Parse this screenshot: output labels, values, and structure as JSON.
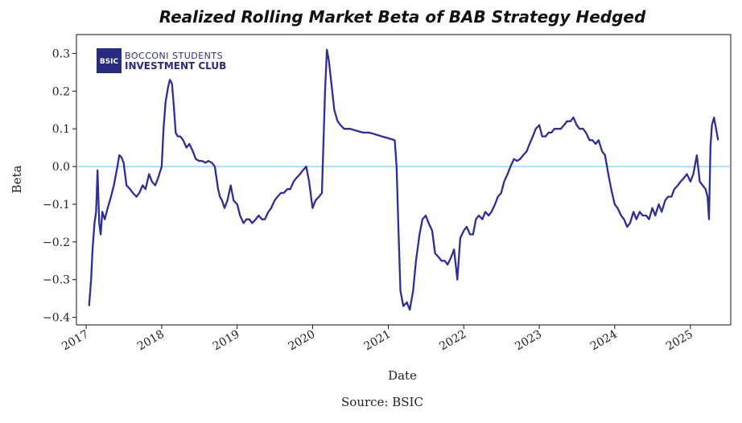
{
  "colors": {
    "line": "#2e2e96",
    "zero_line": "#8ec8f0",
    "logo_bg": "#2a2a80"
  },
  "logo": {
    "icon": "bsic-logo-icon",
    "mark": "BSIC",
    "line1": "BOCCONI STUDENTS",
    "line2": "INVESTMENT CLUB"
  },
  "chart_data": {
    "type": "line",
    "title": "Realized Rolling Market Beta of BAB Strategy Hedged",
    "xlabel": "Date",
    "ylabel": "Beta",
    "source": "Source: BSIC",
    "xlim": [
      "2016-11-15",
      "2025-07-15"
    ],
    "ylim": [
      -0.42,
      0.35
    ],
    "x_ticks": [
      "2017",
      "2018",
      "2019",
      "2020",
      "2021",
      "2022",
      "2023",
      "2024",
      "2025"
    ],
    "y_ticks": [
      -0.4,
      -0.3,
      -0.2,
      -0.1,
      0.0,
      0.1,
      0.2,
      0.3
    ],
    "y_tick_labels": [
      "−0.4",
      "−0.3",
      "−0.2",
      "−0.1",
      "0.0",
      "0.1",
      "0.2",
      "0.3"
    ],
    "hline": 0.0,
    "grid": false,
    "series": [
      {
        "x": [
          "2017-01-15",
          "2017-01-25",
          "2017-02-01",
          "2017-02-10",
          "2017-02-18",
          "2017-02-25",
          "2017-03-05",
          "2017-03-12",
          "2017-03-20",
          "2017-04-01",
          "2017-04-15",
          "2017-05-01",
          "2017-05-15",
          "2017-06-01",
          "2017-06-10",
          "2017-06-20",
          "2017-07-01",
          "2017-07-15",
          "2017-08-01",
          "2017-08-15",
          "2017-09-01",
          "2017-09-15",
          "2017-10-01",
          "2017-10-15",
          "2017-11-01",
          "2017-11-15",
          "2017-12-01",
          "2017-12-15",
          "2018-01-01",
          "2018-01-10",
          "2018-01-20",
          "2018-02-01",
          "2018-02-10",
          "2018-02-20",
          "2018-03-01",
          "2018-03-10",
          "2018-03-20",
          "2018-04-01",
          "2018-04-15",
          "2018-05-01",
          "2018-05-15",
          "2018-06-01",
          "2018-06-15",
          "2018-07-01",
          "2018-07-15",
          "2018-08-01",
          "2018-08-15",
          "2018-09-01",
          "2018-09-15",
          "2018-10-01",
          "2018-10-10",
          "2018-10-20",
          "2018-11-01",
          "2018-11-15",
          "2018-12-01",
          "2018-12-15",
          "2019-01-01",
          "2019-01-15",
          "2019-02-01",
          "2019-02-15",
          "2019-03-01",
          "2019-03-15",
          "2019-04-01",
          "2019-04-15",
          "2019-05-01",
          "2019-05-15",
          "2019-06-01",
          "2019-06-15",
          "2019-07-01",
          "2019-07-15",
          "2019-08-01",
          "2019-08-15",
          "2019-09-01",
          "2019-09-15",
          "2019-10-01",
          "2019-10-15",
          "2019-11-01",
          "2019-11-15",
          "2019-12-01",
          "2019-12-15",
          "2020-01-01",
          "2020-01-15",
          "2020-02-01",
          "2020-02-15",
          "2020-03-01",
          "2020-03-10",
          "2020-03-20",
          "2020-04-01",
          "2020-04-15",
          "2020-05-01",
          "2020-05-15",
          "2020-06-01",
          "2020-07-01",
          "2020-08-01",
          "2020-09-01",
          "2020-10-01",
          "2020-11-01",
          "2020-12-01",
          "2021-01-01",
          "2021-02-01",
          "2021-02-10",
          "2021-02-20",
          "2021-03-01",
          "2021-03-15",
          "2021-04-01",
          "2021-04-15",
          "2021-05-01",
          "2021-05-15",
          "2021-06-01",
          "2021-06-15",
          "2021-07-01",
          "2021-07-15",
          "2021-08-01",
          "2021-08-15",
          "2021-09-01",
          "2021-09-15",
          "2021-10-01",
          "2021-10-15",
          "2021-11-01",
          "2021-11-15",
          "2021-12-01",
          "2021-12-15",
          "2022-01-01",
          "2022-01-15",
          "2022-02-01",
          "2022-02-15",
          "2022-03-01",
          "2022-03-15",
          "2022-04-01",
          "2022-04-15",
          "2022-05-01",
          "2022-05-15",
          "2022-06-01",
          "2022-06-15",
          "2022-07-01",
          "2022-07-15",
          "2022-08-01",
          "2022-08-15",
          "2022-09-01",
          "2022-09-15",
          "2022-10-01",
          "2022-10-15",
          "2022-11-01",
          "2022-11-15",
          "2022-12-01",
          "2022-12-15",
          "2023-01-01",
          "2023-01-15",
          "2023-02-01",
          "2023-02-15",
          "2023-03-01",
          "2023-03-15",
          "2023-04-01",
          "2023-04-15",
          "2023-05-01",
          "2023-05-15",
          "2023-06-01",
          "2023-06-15",
          "2023-07-01",
          "2023-07-15",
          "2023-08-01",
          "2023-08-15",
          "2023-09-01",
          "2023-09-15",
          "2023-10-01",
          "2023-10-15",
          "2023-11-01",
          "2023-11-15",
          "2023-12-01",
          "2023-12-15",
          "2024-01-01",
          "2024-01-15",
          "2024-02-01",
          "2024-02-15",
          "2024-03-01",
          "2024-03-15",
          "2024-04-01",
          "2024-04-15",
          "2024-05-01",
          "2024-05-15",
          "2024-06-01",
          "2024-06-15",
          "2024-07-01",
          "2024-07-15",
          "2024-08-01",
          "2024-08-15",
          "2024-09-01",
          "2024-09-15",
          "2024-10-01",
          "2024-10-15",
          "2024-11-01",
          "2024-11-15",
          "2024-12-01",
          "2024-12-15",
          "2025-01-01",
          "2025-01-15",
          "2025-02-01",
          "2025-02-15",
          "2025-03-01",
          "2025-03-15",
          "2025-03-25",
          "2025-04-01",
          "2025-04-08",
          "2025-04-15",
          "2025-04-25",
          "2025-05-05",
          "2025-05-15"
        ],
        "values": [
          -0.37,
          -0.3,
          -0.22,
          -0.15,
          -0.12,
          -0.01,
          -0.15,
          -0.18,
          -0.12,
          -0.14,
          -0.11,
          -0.08,
          -0.05,
          0.0,
          0.03,
          0.025,
          0.01,
          -0.05,
          -0.06,
          -0.07,
          -0.08,
          -0.07,
          -0.05,
          -0.06,
          -0.02,
          -0.04,
          -0.05,
          -0.03,
          0.0,
          0.1,
          0.17,
          0.21,
          0.23,
          0.22,
          0.16,
          0.09,
          0.08,
          0.08,
          0.07,
          0.05,
          0.06,
          0.04,
          0.02,
          0.015,
          0.015,
          0.01,
          0.015,
          0.01,
          0.0,
          -0.06,
          -0.08,
          -0.09,
          -0.11,
          -0.09,
          -0.05,
          -0.09,
          -0.1,
          -0.13,
          -0.15,
          -0.14,
          -0.14,
          -0.15,
          -0.14,
          -0.13,
          -0.14,
          -0.14,
          -0.12,
          -0.11,
          -0.09,
          -0.08,
          -0.07,
          -0.07,
          -0.06,
          -0.06,
          -0.04,
          -0.03,
          -0.02,
          -0.01,
          0.0,
          -0.04,
          -0.11,
          -0.09,
          -0.08,
          -0.07,
          0.2,
          0.31,
          0.28,
          0.22,
          0.15,
          0.12,
          0.11,
          0.1,
          0.1,
          0.095,
          0.09,
          0.09,
          0.085,
          0.08,
          0.075,
          0.07,
          0.0,
          -0.18,
          -0.33,
          -0.37,
          -0.36,
          -0.38,
          -0.33,
          -0.25,
          -0.18,
          -0.14,
          -0.13,
          -0.15,
          -0.17,
          -0.23,
          -0.24,
          -0.25,
          -0.25,
          -0.26,
          -0.24,
          -0.22,
          -0.3,
          -0.19,
          -0.17,
          -0.16,
          -0.18,
          -0.18,
          -0.14,
          -0.13,
          -0.14,
          -0.12,
          -0.13,
          -0.12,
          -0.1,
          -0.08,
          -0.07,
          -0.04,
          -0.02,
          0.0,
          0.02,
          0.015,
          0.02,
          0.03,
          0.04,
          0.06,
          0.08,
          0.1,
          0.11,
          0.08,
          0.08,
          0.09,
          0.09,
          0.1,
          0.1,
          0.1,
          0.11,
          0.12,
          0.12,
          0.13,
          0.11,
          0.1,
          0.1,
          0.09,
          0.07,
          0.07,
          0.06,
          0.07,
          0.04,
          0.03,
          -0.02,
          -0.06,
          -0.1,
          -0.11,
          -0.13,
          -0.14,
          -0.16,
          -0.15,
          -0.12,
          -0.14,
          -0.12,
          -0.13,
          -0.13,
          -0.14,
          -0.11,
          -0.13,
          -0.1,
          -0.12,
          -0.09,
          -0.08,
          -0.08,
          -0.06,
          -0.05,
          -0.04,
          -0.03,
          -0.02,
          -0.04,
          -0.02,
          0.03,
          -0.04,
          -0.05,
          -0.06,
          -0.08,
          -0.14,
          0.05,
          0.11,
          0.13,
          0.1,
          0.07
        ]
      }
    ]
  }
}
